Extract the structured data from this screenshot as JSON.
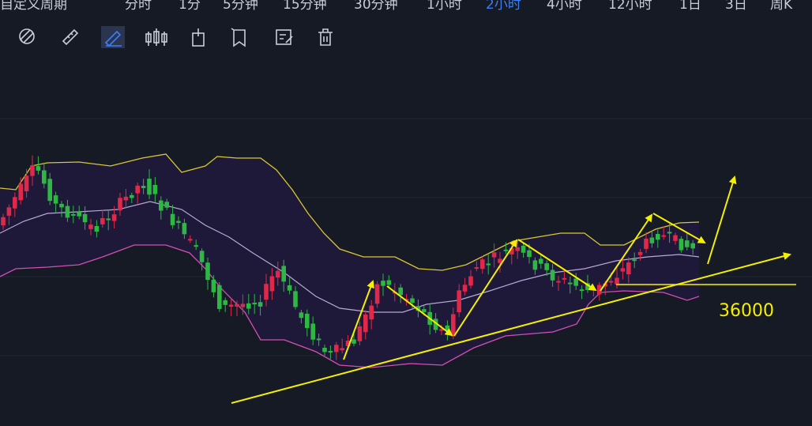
{
  "tabs": {
    "items": [
      "自定义周期",
      "分时",
      "1分",
      "5分钟",
      "15分钟",
      "30分钟",
      "1小时",
      "2小时",
      "4小时",
      "12小时",
      "1日",
      "3日",
      "周K"
    ],
    "active": "2小时"
  },
  "annotation": {
    "label": "36000"
  }
}
